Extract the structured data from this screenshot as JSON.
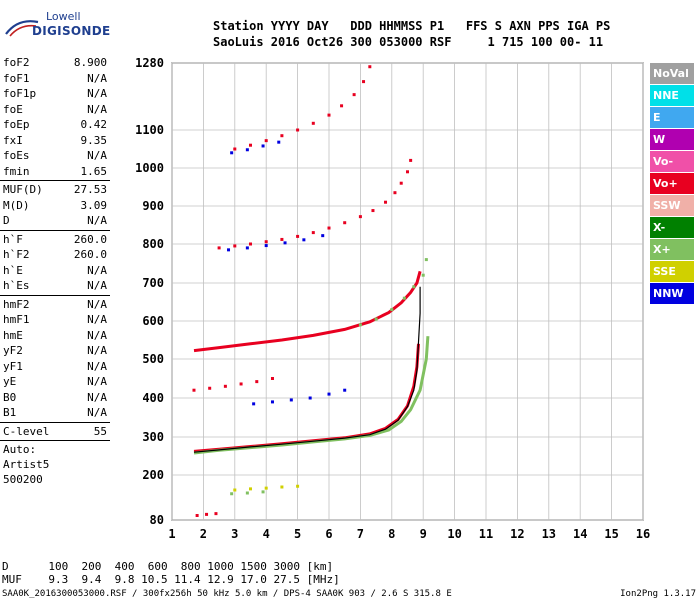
{
  "logo": {
    "line1": "Lowell",
    "line2": "DIGISONDE"
  },
  "header": {
    "line1": "Station YYYY DAY   DDD HHMMSS P1   FFS S AXN PPS IGA PS",
    "line2": "SaoLuis 2016 Oct26 300 053000 RSF     1 715 100 00- 11"
  },
  "params_a": [
    {
      "name": "foF2",
      "value": "8.900"
    },
    {
      "name": "foF1",
      "value": "N/A"
    },
    {
      "name": "foF1p",
      "value": "N/A"
    },
    {
      "name": "foE",
      "value": "N/A"
    },
    {
      "name": "foEp",
      "value": "0.42"
    },
    {
      "name": "fxI",
      "value": "9.35"
    },
    {
      "name": "foEs",
      "value": "N/A"
    },
    {
      "name": "fmin",
      "value": "1.65"
    }
  ],
  "params_b": [
    {
      "name": "MUF(D)",
      "value": "27.53"
    },
    {
      "name": "M(D)",
      "value": "3.09"
    },
    {
      "name": "D",
      "value": "N/A"
    }
  ],
  "params_c": [
    {
      "name": "h`F",
      "value": "260.0"
    },
    {
      "name": "h`F2",
      "value": "260.0"
    },
    {
      "name": "h`E",
      "value": "N/A"
    },
    {
      "name": "h`Es",
      "value": "N/A"
    }
  ],
  "params_d": [
    {
      "name": "hmF2",
      "value": "N/A"
    },
    {
      "name": "hmF1",
      "value": "N/A"
    },
    {
      "name": "hmE",
      "value": "N/A"
    },
    {
      "name": "yF2",
      "value": "N/A"
    },
    {
      "name": "yF1",
      "value": "N/A"
    },
    {
      "name": "yE",
      "value": "N/A"
    },
    {
      "name": "B0",
      "value": "N/A"
    },
    {
      "name": "B1",
      "value": "N/A"
    }
  ],
  "params_e": [
    {
      "name": "C-level",
      "value": "55"
    }
  ],
  "auto": {
    "l1": "Auto:",
    "l2": "Artist5",
    "l3": "500200"
  },
  "legend": [
    {
      "label": "NoVal",
      "color": "#a0a0a0"
    },
    {
      "label": "NNE",
      "color": "#00e0e8"
    },
    {
      "label": "E",
      "color": "#40a8f0"
    },
    {
      "label": "W",
      "color": "#b000b0"
    },
    {
      "label": "Vo-",
      "color": "#f050a8"
    },
    {
      "label": "Vo+",
      "color": "#e80020"
    },
    {
      "label": "SSW",
      "color": "#f0b0a8"
    },
    {
      "label": "X-",
      "color": "#008000"
    },
    {
      "label": "X+",
      "color": "#80c060"
    },
    {
      "label": "SSE",
      "color": "#d0d000"
    },
    {
      "label": "NNW",
      "color": "#0000e0"
    }
  ],
  "footer": {
    "line1": "D      100  200  400  600  800 1000 1500 3000 [km]",
    "line2": "MUF    9.3  9.4  9.8 10.5 11.4 12.9 17.0 27.5 [MHz]",
    "line3": "SAA0K_2016300053000.RSF / 300fx256h 50 kHz 5.0 km / DPS-4 SAA0K 903 / 2.6 S 315.8 E",
    "line4": "Ion2Png 1.3.17"
  },
  "chart_data": {
    "type": "scatter",
    "x_ticks": [
      "1",
      "2",
      "3",
      "4",
      "5",
      "6",
      "7",
      "8",
      "9",
      "10",
      "11",
      "12",
      "13",
      "14",
      "15",
      "16"
    ],
    "y_ticks": [
      "80",
      "200",
      "300",
      "400",
      "500",
      "600",
      "700",
      "800",
      "900",
      "1000",
      "1100",
      "1280"
    ],
    "xlim": [
      1,
      16
    ],
    "ylim": [
      80,
      1280
    ],
    "grid": true,
    "traces": [
      {
        "color": "#e80020",
        "mode": "line",
        "points": [
          [
            1.7,
            262
          ],
          [
            2.5,
            268
          ],
          [
            3.5,
            275
          ],
          [
            4.5,
            282
          ],
          [
            5.5,
            290
          ],
          [
            6.5,
            298
          ],
          [
            7.3,
            308
          ],
          [
            7.8,
            322
          ],
          [
            8.2,
            345
          ],
          [
            8.5,
            380
          ],
          [
            8.7,
            430
          ],
          [
            8.8,
            480
          ],
          [
            8.85,
            540
          ]
        ]
      },
      {
        "color": "#80c060",
        "mode": "line",
        "points": [
          [
            1.7,
            258
          ],
          [
            2.5,
            265
          ],
          [
            3.5,
            272
          ],
          [
            4.5,
            279
          ],
          [
            5.5,
            287
          ],
          [
            6.5,
            295
          ],
          [
            7.3,
            304
          ],
          [
            7.9,
            318
          ],
          [
            8.3,
            340
          ],
          [
            8.6,
            370
          ],
          [
            8.9,
            420
          ],
          [
            9.1,
            500
          ],
          [
            9.15,
            560
          ]
        ]
      },
      {
        "color": "#000000",
        "mode": "line",
        "points": [
          [
            1.7,
            260
          ],
          [
            2.5,
            266
          ],
          [
            3.5,
            274
          ],
          [
            4.5,
            281
          ],
          [
            5.5,
            289
          ],
          [
            6.5,
            297
          ],
          [
            7.3,
            306
          ],
          [
            7.8,
            320
          ],
          [
            8.2,
            343
          ],
          [
            8.5,
            378
          ],
          [
            8.7,
            420
          ],
          [
            8.8,
            470
          ],
          [
            8.85,
            545
          ],
          [
            8.9,
            620
          ],
          [
            8.9,
            690
          ]
        ]
      },
      {
        "color": "#e80020",
        "mode": "line",
        "points": [
          [
            1.7,
            522
          ],
          [
            2.5,
            530
          ],
          [
            3.5,
            540
          ],
          [
            4.5,
            550
          ],
          [
            5.5,
            562
          ],
          [
            6.5,
            578
          ],
          [
            7.3,
            598
          ],
          [
            7.9,
            622
          ],
          [
            8.3,
            648
          ],
          [
            8.6,
            675
          ],
          [
            8.8,
            700
          ],
          [
            8.9,
            730
          ]
        ]
      },
      {
        "color": "#80c060",
        "mode": "dots",
        "points": [
          [
            7.0,
            590
          ],
          [
            7.5,
            605
          ],
          [
            8.0,
            630
          ],
          [
            8.4,
            660
          ],
          [
            8.7,
            690
          ],
          [
            9.0,
            720
          ],
          [
            9.1,
            760
          ]
        ]
      },
      {
        "color": "#e80020",
        "mode": "dots",
        "points": [
          [
            1.7,
            420
          ],
          [
            2.2,
            425
          ],
          [
            2.7,
            430
          ],
          [
            3.2,
            436
          ],
          [
            3.7,
            442
          ],
          [
            4.2,
            450
          ]
        ]
      },
      {
        "color": "#e80020",
        "mode": "dots",
        "points": [
          [
            2.5,
            790
          ],
          [
            3.0,
            795
          ],
          [
            3.5,
            800
          ],
          [
            4.0,
            806
          ],
          [
            4.5,
            812
          ],
          [
            5.0,
            820
          ],
          [
            5.5,
            830
          ],
          [
            6.0,
            842
          ],
          [
            6.5,
            856
          ],
          [
            7.0,
            872
          ],
          [
            7.4,
            888
          ],
          [
            7.8,
            910
          ],
          [
            8.1,
            935
          ],
          [
            8.3,
            960
          ],
          [
            8.5,
            990
          ],
          [
            8.6,
            1020
          ]
        ]
      },
      {
        "color": "#0000e0",
        "mode": "dots",
        "points": [
          [
            2.8,
            785
          ],
          [
            3.4,
            790
          ],
          [
            4.0,
            796
          ],
          [
            4.6,
            803
          ],
          [
            5.2,
            811
          ],
          [
            5.8,
            822
          ]
        ]
      },
      {
        "color": "#e80020",
        "mode": "dots",
        "points": [
          [
            3.0,
            1050
          ],
          [
            3.5,
            1060
          ],
          [
            4.0,
            1072
          ],
          [
            4.5,
            1085
          ],
          [
            5.0,
            1100
          ],
          [
            5.5,
            1118
          ],
          [
            6.0,
            1140
          ],
          [
            6.4,
            1165
          ],
          [
            6.8,
            1195
          ],
          [
            7.1,
            1230
          ],
          [
            7.3,
            1270
          ]
        ]
      },
      {
        "color": "#0000e0",
        "mode": "dots",
        "points": [
          [
            2.9,
            1040
          ],
          [
            3.4,
            1048
          ],
          [
            3.9,
            1058
          ],
          [
            4.4,
            1068
          ]
        ]
      },
      {
        "color": "#0000e0",
        "mode": "dots",
        "points": [
          [
            3.6,
            385
          ],
          [
            4.2,
            390
          ],
          [
            4.8,
            395
          ],
          [
            5.4,
            400
          ],
          [
            6.0,
            410
          ],
          [
            6.5,
            420
          ]
        ]
      },
      {
        "color": "#d0d000",
        "mode": "dots",
        "points": [
          [
            3.0,
            160
          ],
          [
            3.5,
            163
          ],
          [
            4.0,
            165
          ],
          [
            4.5,
            168
          ],
          [
            5.0,
            170
          ]
        ]
      },
      {
        "color": "#80c060",
        "mode": "dots",
        "points": [
          [
            2.9,
            150
          ],
          [
            3.4,
            152
          ],
          [
            3.9,
            155
          ]
        ]
      },
      {
        "color": "#e80020",
        "mode": "dots",
        "points": [
          [
            1.8,
            92
          ],
          [
            2.1,
            95
          ],
          [
            2.4,
            97
          ]
        ]
      }
    ]
  }
}
